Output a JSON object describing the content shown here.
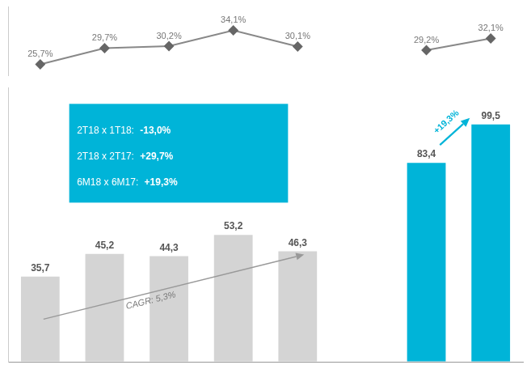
{
  "chart_data": [
    {
      "type": "line",
      "categories": [
        null,
        null,
        null,
        null,
        null,
        null,
        null,
        null
      ],
      "values": [
        25.7,
        29.7,
        30.2,
        34.1,
        30.1,
        null,
        29.2,
        32.1
      ],
      "value_labels": [
        "25,7%",
        "29,7%",
        "30,2%",
        "34,1%",
        "30,1%",
        null,
        "29,2%",
        "32,1%"
      ],
      "color": "#888888",
      "marker": "diamond",
      "data_labels": true,
      "ylim": [
        23,
        40
      ],
      "tick_labels": false,
      "grid": false
    },
    {
      "type": "bar",
      "categories": [
        null,
        null,
        null,
        null,
        null,
        null,
        null,
        null
      ],
      "values": [
        35.7,
        45.2,
        44.3,
        53.2,
        46.3,
        null,
        83.4,
        99.5
      ],
      "value_labels": [
        "35,7",
        "45,2",
        "44,3",
        "53,2",
        "46,3",
        null,
        "83,4",
        "99,5"
      ],
      "colors": [
        "#d4d4d4",
        "#d4d4d4",
        "#d4d4d4",
        "#d4d4d4",
        "#d4d4d4",
        null,
        "#00b4d8",
        "#00b4d8"
      ],
      "data_labels": true,
      "ylim": [
        0,
        115
      ],
      "tick_labels": false,
      "grid": false,
      "annotations": [
        "CAGR: 5,3%",
        "+19,3%",
        "2T18 x 1T18: -13,0%",
        "2T18 x 2T17: +29,7%",
        "6M18 x 6M17: +19,3%"
      ]
    }
  ]
}
